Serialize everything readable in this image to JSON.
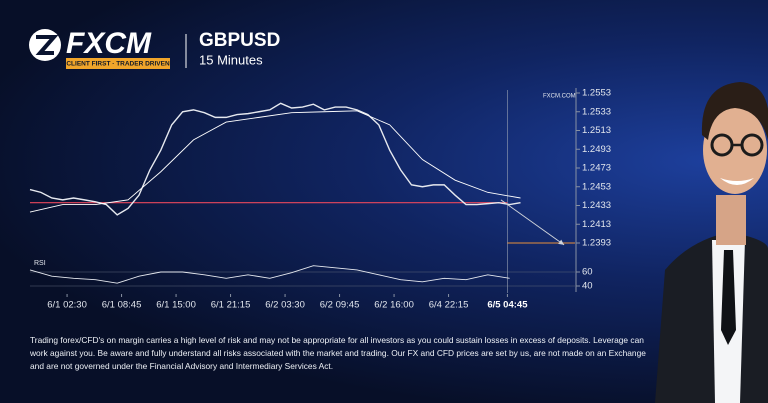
{
  "header": {
    "logo": "FXCM",
    "tagline": "CLIENT FIRST · TRADER DRIVEN"
  },
  "chart_data": {
    "type": "line",
    "title": "GBPUSD",
    "subtitle": "15 Minutes",
    "source": "FXCM.COM",
    "xlim": [
      0,
      250
    ],
    "xticks": [
      {
        "value": 17,
        "label": "6/1 02:30"
      },
      {
        "value": 42,
        "label": "6/1 08:45"
      },
      {
        "value": 67,
        "label": "6/1 15:00"
      },
      {
        "value": 92,
        "label": "6/1 21:15"
      },
      {
        "value": 117,
        "label": "6/2 03:30"
      },
      {
        "value": 142,
        "label": "6/2 09:45"
      },
      {
        "value": 167,
        "label": "6/2 16:00"
      },
      {
        "value": 192,
        "label": "6/4 22:15"
      },
      {
        "value": 219,
        "label": "6/5 04:45"
      }
    ],
    "ylim": [
      1.2393,
      1.2553
    ],
    "yticks": [
      1.2553,
      1.2533,
      1.2513,
      1.2493,
      1.2473,
      1.2453,
      1.2433,
      1.2413,
      1.2393
    ],
    "series": [
      {
        "color": "#e6e9ef",
        "x": [
          0,
          5,
          10,
          15,
          20,
          25,
          30,
          35,
          40,
          45,
          50,
          55,
          60,
          65,
          70,
          75,
          80,
          85,
          90,
          95,
          100,
          105,
          110,
          115,
          120,
          125,
          130,
          135,
          140,
          145,
          150,
          155,
          160,
          165,
          170,
          175,
          180,
          185,
          190,
          195,
          200,
          205,
          210,
          215,
          220,
          225
        ],
        "values": [
          1.245,
          1.2447,
          1.2441,
          1.2439,
          1.2441,
          1.2439,
          1.2437,
          1.2434,
          1.2423,
          1.243,
          1.2444,
          1.2471,
          1.2492,
          1.2519,
          1.2533,
          1.2535,
          1.2532,
          1.2527,
          1.2527,
          1.253,
          1.2531,
          1.2533,
          1.2535,
          1.2542,
          1.2537,
          1.2538,
          1.2541,
          1.2535,
          1.2538,
          1.2538,
          1.2535,
          1.253,
          1.2519,
          1.2492,
          1.2471,
          1.2455,
          1.2453,
          1.2455,
          1.2455,
          1.2444,
          1.2434,
          1.2434,
          1.2435,
          1.2436,
          1.2434,
          1.2436
        ]
      },
      {
        "color": "#ffffff",
        "x": [
          0,
          15,
          30,
          45,
          60,
          75,
          90,
          105,
          120,
          135,
          150,
          165,
          180,
          195,
          210,
          225
        ],
        "values": [
          1.2426,
          1.2434,
          1.2434,
          1.2439,
          1.2469,
          1.2503,
          1.2522,
          1.2527,
          1.2532,
          1.2533,
          1.2534,
          1.2519,
          1.2482,
          1.246,
          1.2447,
          1.2441
        ]
      }
    ],
    "support": {
      "value": 1.2436,
      "color": "#e8475c"
    },
    "projection": {
      "x": [
        216,
        245
      ],
      "values": [
        1.2439,
        1.2391
      ],
      "color": "#cfd3da"
    },
    "target": {
      "value": 1.2393,
      "color": "#e8903a"
    },
    "rsi": {
      "label": "RSI",
      "ylim": [
        30,
        75
      ],
      "yticks": [
        60,
        40
      ],
      "color": "#e6e9ef",
      "x": [
        0,
        10,
        20,
        30,
        40,
        50,
        60,
        70,
        80,
        90,
        100,
        110,
        120,
        130,
        140,
        150,
        160,
        170,
        180,
        190,
        200,
        210,
        220
      ],
      "values": [
        63,
        54,
        51,
        49,
        44,
        54,
        60,
        60,
        56,
        51,
        56,
        51,
        59,
        69,
        66,
        63,
        56,
        49,
        46,
        51,
        49,
        56,
        51
      ]
    }
  },
  "disclaimer": "Trading forex/CFD's on margin carries a high level of risk and may not be appropriate for all investors as you could sustain losses in excess of deposits. Leverage can work against you. Be aware and fully understand all risks associated with the market and trading. Our FX and CFD prices are set by us, are not made on an Exchange and are not governed under the Financial Advisory and Intermediary Services Act."
}
